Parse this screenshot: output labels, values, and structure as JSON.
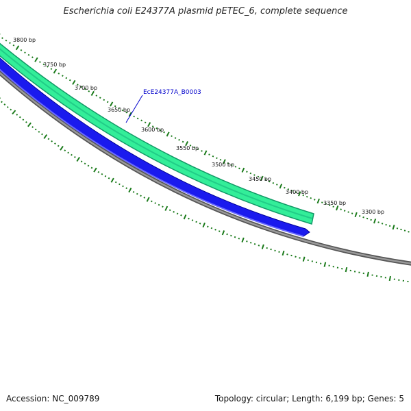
{
  "title": "Escherichia coli E24377A plasmid pETEC_6, complete sequence",
  "accession": "Accession: NC_009789",
  "summary": "Topology: circular; Length: 6,199 bp; Genes: 5",
  "ticks": [
    "3800 bp",
    "3750 bp",
    "3700 bp",
    "3650 bp",
    "3600 bp",
    "3550 bp",
    "3500 bp",
    "3450 bp",
    "3400 bp",
    "3350 bp",
    "3300 bp"
  ],
  "gene_label": "EcE24377A_B0003",
  "colors": {
    "backbone": "#808080",
    "forward_feature": "#33ee99",
    "forward_feature_edge": "#119966",
    "reverse_feature": "#1a1aee",
    "reverse_feature_edge": "#000099",
    "tick": "#1a7a1a",
    "label": "#0000cc"
  }
}
